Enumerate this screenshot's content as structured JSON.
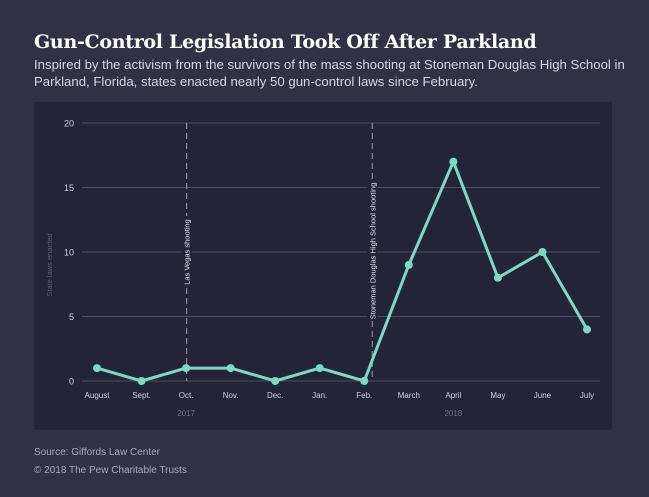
{
  "header": {
    "title": "Gun-Control Legislation Took Off After Parkland",
    "subtitle": "Inspired by the activism from the survivors of the mass shooting at Stoneman Douglas High School in Parkland, Florida, states enacted nearly 50 gun-control laws since February."
  },
  "footer": {
    "source": "Source: Giffords Law Center",
    "copyright": "© 2018 The Pew Charitable Trusts"
  },
  "colors": {
    "line": "#7dd9c3",
    "grid": "#4a4b60",
    "annotation": "#8a8b9c",
    "tick_text": "#d0d1dc",
    "year_text": "#6e6f82",
    "ylabel_text": "#5d5e72"
  },
  "chart_data": {
    "type": "line",
    "title": "Gun-Control Legislation Took Off After Parkland",
    "xlabel": "",
    "ylabel": "State laws enacted",
    "categories": [
      "August",
      "Sept.",
      "Oct.",
      "Nov.",
      "Dec.",
      "Jan.",
      "Feb.",
      "March",
      "April",
      "May",
      "June",
      "July"
    ],
    "series": [
      {
        "name": "State laws enacted",
        "values": [
          1,
          0,
          1,
          1,
          0,
          1,
          0,
          9,
          17,
          8,
          10,
          4
        ]
      }
    ],
    "ylim": [
      0,
      20
    ],
    "yticks": [
      0,
      5,
      10,
      15,
      20
    ],
    "grid": true,
    "year_labels": [
      {
        "label": "2017",
        "category": "Oct."
      },
      {
        "label": "2018",
        "category": "April"
      }
    ],
    "annotations": [
      {
        "label": "Las Vegas shooting",
        "position": "Oct."
      },
      {
        "label": "Stoneman Douglas High School shooting",
        "position": "between Feb. and March"
      }
    ]
  }
}
